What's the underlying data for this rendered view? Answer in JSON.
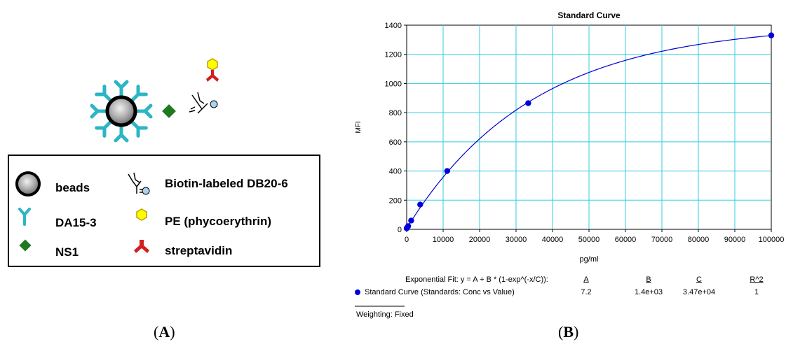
{
  "panel_a": {
    "label": "A",
    "legend": {
      "beads": "beads",
      "antibody": "DA15-3",
      "ns1": "NS1",
      "biotin": "Biotin-labeled DB20-6",
      "pe": "PE (phycoerythrin)",
      "streptavidin": "streptavidin"
    },
    "colors": {
      "antibody": "#2bb5c5",
      "ns1": "#1f7a1f",
      "pe_fill": "#ffff00",
      "pe_stroke": "#b8a000",
      "streptavidin": "#d11f1f",
      "biotin_dot": "#a9d3ec"
    }
  },
  "panel_b": {
    "label": "B",
    "chart_data": {
      "type": "scatter",
      "title": "Standard Curve",
      "xlabel": "pg/ml",
      "ylabel": "MFI",
      "xlim": [
        0,
        100000
      ],
      "ylim": [
        0,
        1400
      ],
      "xticks": [
        0,
        10000,
        20000,
        30000,
        40000,
        50000,
        60000,
        70000,
        80000,
        90000,
        100000
      ],
      "yticks": [
        0,
        200,
        400,
        600,
        800,
        1000,
        1200,
        1400
      ],
      "grid": true,
      "point_color": "#0000dd",
      "curve_color": "#0000cc",
      "grid_color": "#33ccdd",
      "points": {
        "x": [
          0,
          137,
          412,
          1235,
          3704,
          11111,
          33333,
          100000
        ],
        "y": [
          7,
          12,
          22,
          60,
          170,
          400,
          865,
          1330
        ]
      },
      "fit": {
        "label": "Exponential Fit: y = A + B * (1-exp^(-x/C)):",
        "headers": [
          "A",
          "B",
          "C",
          "R^2"
        ],
        "values": [
          "7.2",
          "1.4e+03",
          "3.47e+04",
          "1"
        ],
        "A": 7.2,
        "B": 1400,
        "C": 34700,
        "series_label": "Standard Curve (Standards: Conc vs Value)"
      },
      "weighting": "Weighting: Fixed"
    }
  }
}
